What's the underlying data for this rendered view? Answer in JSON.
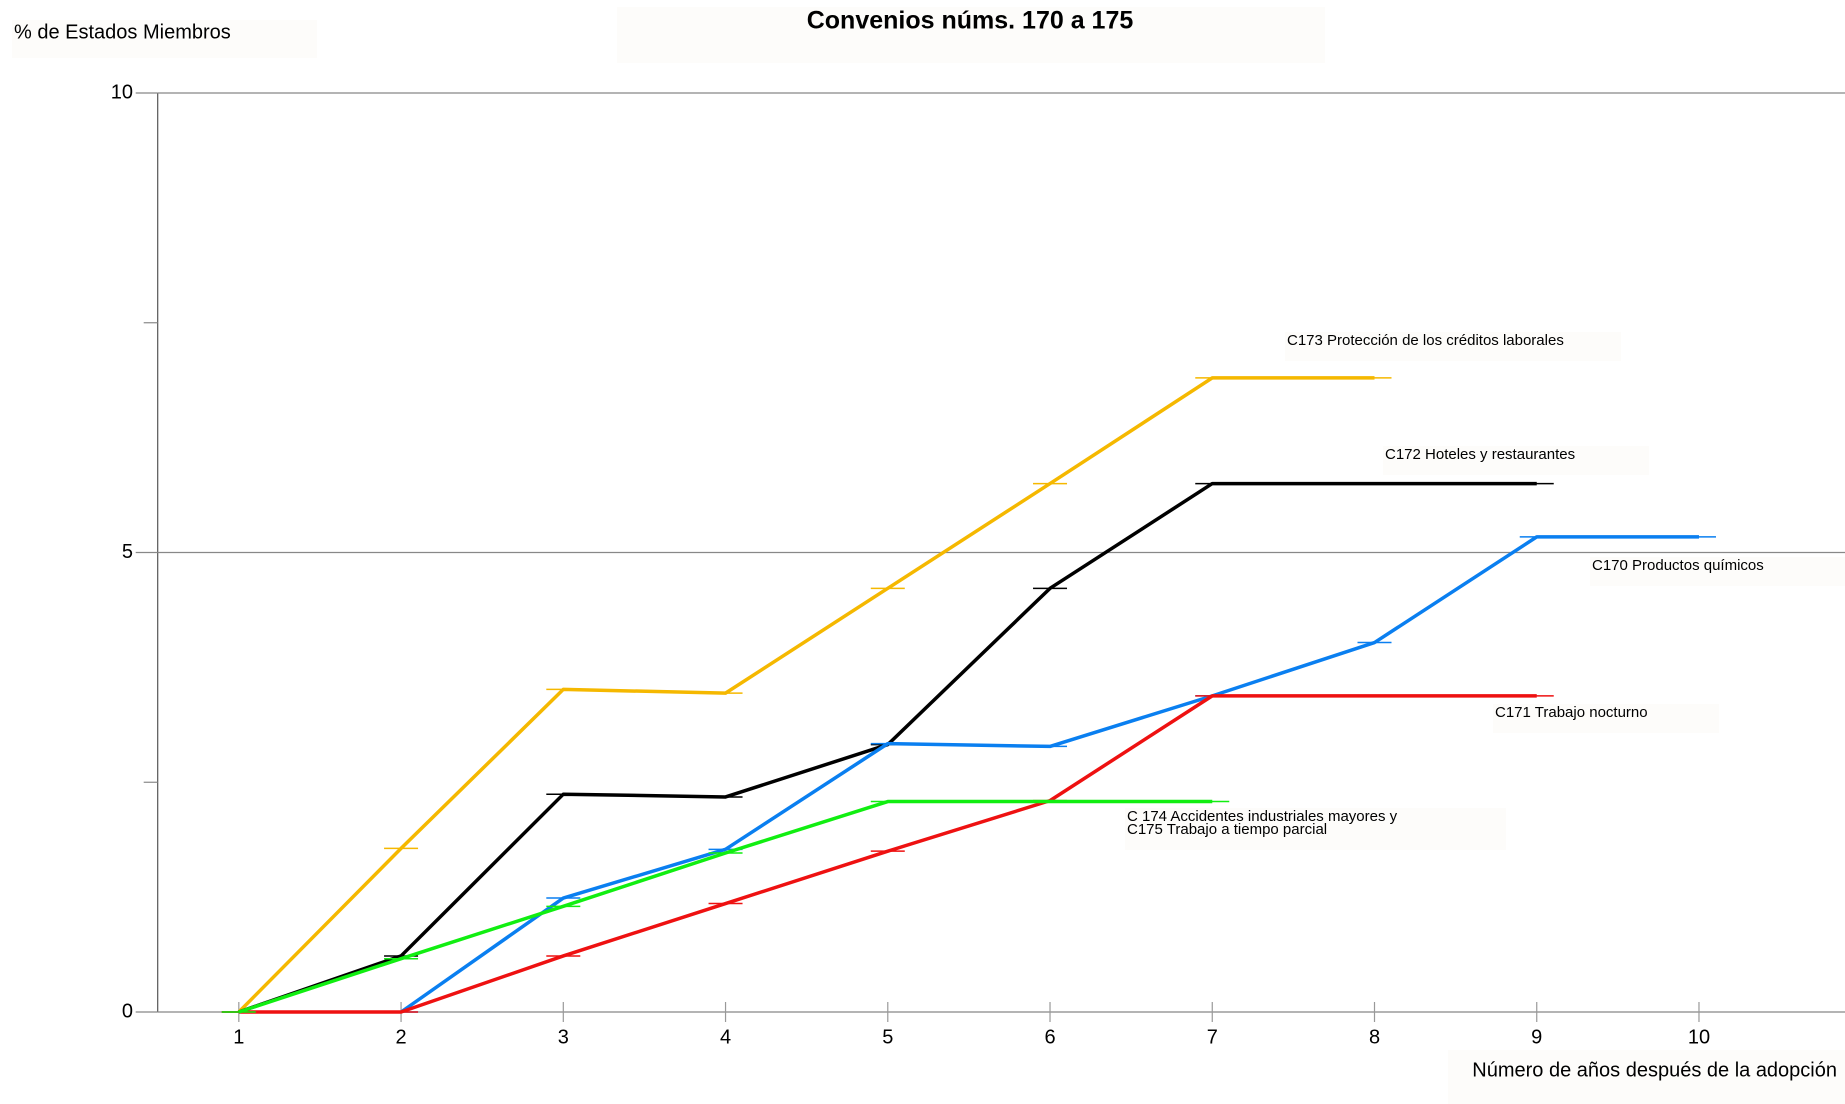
{
  "chart_data": {
    "type": "line",
    "title": "Convenios núms. 170 a 175",
    "y_label": "% de Estados Miembros",
    "x_label": "Número de años después de la adopción",
    "x": [
      1,
      2,
      3,
      4,
      5,
      6,
      7,
      8,
      9,
      10
    ],
    "xlim": [
      0.5,
      10.9
    ],
    "xticks": [
      1,
      2,
      3,
      4,
      5,
      6,
      7,
      8,
      9,
      10
    ],
    "ylim": [
      0,
      10
    ],
    "yticks": [
      0,
      5,
      10
    ],
    "minor_yticks": [
      2.5,
      7.5
    ],
    "grid": true,
    "series": [
      {
        "name": "C173 Protección de los créditos laborales",
        "color": "#f5b800",
        "values": [
          0,
          1.78,
          3.51,
          3.47,
          4.61,
          5.75,
          6.9,
          6.9,
          null,
          null
        ]
      },
      {
        "name": "C172 Hoteles y restaurantes",
        "color": "#000000",
        "values": [
          0,
          0.61,
          2.37,
          2.34,
          2.91,
          4.61,
          5.75,
          5.75,
          5.75,
          null
        ]
      },
      {
        "name": "C170 Productos químicos",
        "color": "#0a7ff0",
        "values": [
          null,
          0,
          1.24,
          1.77,
          2.92,
          2.89,
          3.44,
          4.02,
          5.17,
          5.17
        ]
      },
      {
        "name": "C171 Trabajo nocturno",
        "color": "#ee1111",
        "values": [
          0,
          0,
          0.61,
          1.18,
          1.75,
          2.3,
          3.44,
          3.44,
          3.44,
          null
        ]
      },
      {
        "name": "C 174 Accidentes industriales mayores y\nC175 Trabajo a tiempo parcial",
        "color": "#11ee11",
        "values": [
          0,
          0.58,
          1.15,
          1.73,
          2.29,
          2.29,
          2.29,
          null,
          null,
          null
        ]
      }
    ]
  }
}
